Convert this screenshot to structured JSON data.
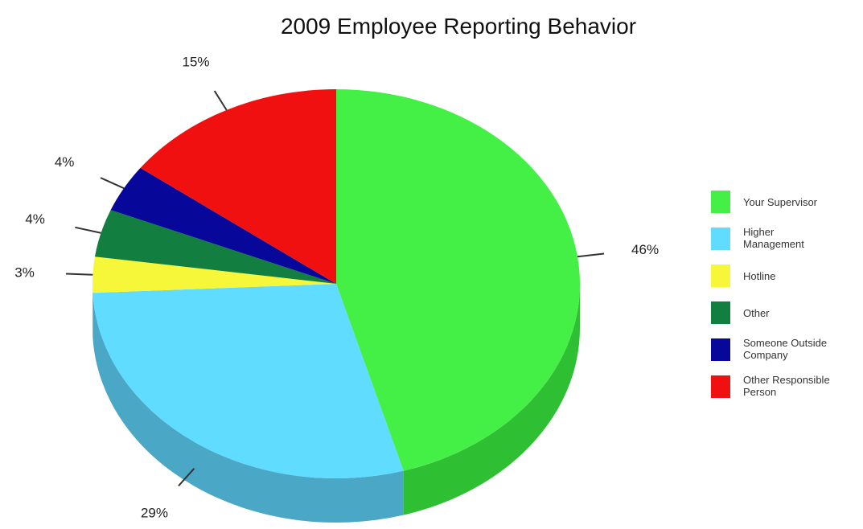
{
  "chart_data": {
    "type": "pie",
    "title": "2009 Employee Reporting Behavior",
    "unit": "%",
    "slices": [
      {
        "name": "Your Supervisor",
        "value": 46,
        "label": "46%",
        "color": "#44f046",
        "side_color": "#2fbf33"
      },
      {
        "name": "Higher Management",
        "value": 29,
        "label": "29%",
        "color": "#5fdcff",
        "side_color": "#4aa8c6"
      },
      {
        "name": "Hotline",
        "value": 3,
        "label": "3%",
        "color": "#f7f73a",
        "side_color": "#c6c62a"
      },
      {
        "name": "Other",
        "value": 4,
        "label": "4%",
        "color": "#127e3f",
        "side_color": "#0c5a2c"
      },
      {
        "name": "Someone Outside Company",
        "value": 4,
        "label": "4%",
        "color": "#07079a",
        "side_color": "#05056e"
      },
      {
        "name": "Other Responsible Person",
        "value": 15,
        "label": "15%",
        "color": "#f01010",
        "side_color": "#b50c0c"
      }
    ],
    "legend": {
      "placement": "right",
      "entries": [
        {
          "lines": [
            "Your Supervisor"
          ]
        },
        {
          "lines": [
            "Higher",
            "Management"
          ]
        },
        {
          "lines": [
            "Hotline"
          ]
        },
        {
          "lines": [
            "Other"
          ]
        },
        {
          "lines": [
            "Someone Outside",
            "Company"
          ]
        },
        {
          "lines": [
            "Other Responsible",
            "Person"
          ]
        }
      ]
    },
    "three_d": true,
    "start_position": "top, clockwise"
  }
}
